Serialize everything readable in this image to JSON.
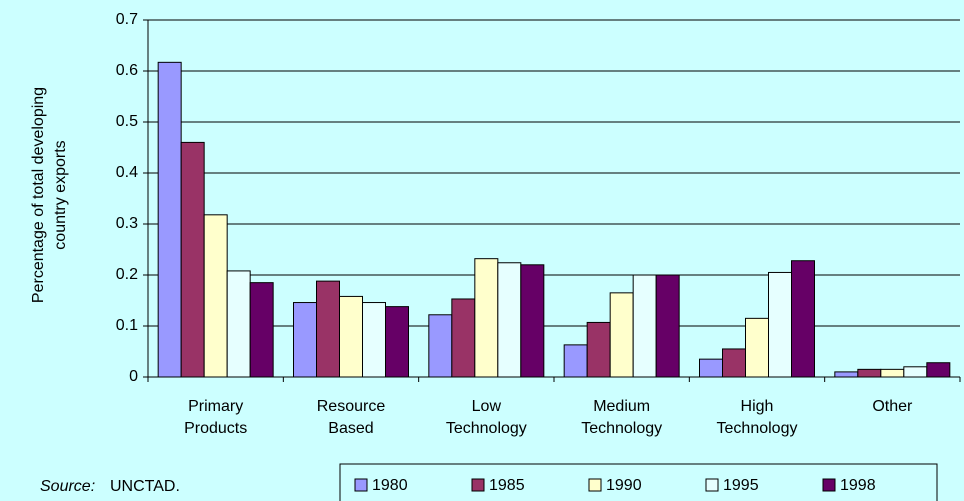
{
  "chart_data": {
    "type": "bar",
    "y_label": "Percentage of total developing\ncountry exports",
    "categories": [
      "Primary\nProducts",
      "Resource\nBased",
      "Low\nTechnology",
      "Medium\nTechnology",
      "High\nTechnology",
      "Other"
    ],
    "series": [
      {
        "name": "1980",
        "color": "#9999ff",
        "values": [
          0.617,
          0.146,
          0.122,
          0.063,
          0.035,
          0.01
        ]
      },
      {
        "name": "1985",
        "color": "#993366",
        "values": [
          0.46,
          0.188,
          0.153,
          0.107,
          0.055,
          0.015
        ]
      },
      {
        "name": "1990",
        "color": "#ffffcc",
        "values": [
          0.318,
          0.158,
          0.232,
          0.165,
          0.115,
          0.015
        ]
      },
      {
        "name": "1995",
        "color": "#e6ffff",
        "values": [
          0.208,
          0.146,
          0.224,
          0.2,
          0.205,
          0.02
        ]
      },
      {
        "name": "1998",
        "color": "#660066",
        "values": [
          0.185,
          0.138,
          0.22,
          0.2,
          0.228,
          0.028
        ]
      }
    ],
    "ylim": [
      0,
      0.7
    ],
    "yticks": [
      0,
      0.1,
      0.2,
      0.3,
      0.4,
      0.5,
      0.6,
      0.7
    ],
    "grid": true,
    "source_label": "Source:",
    "source": "UNCTAD."
  }
}
